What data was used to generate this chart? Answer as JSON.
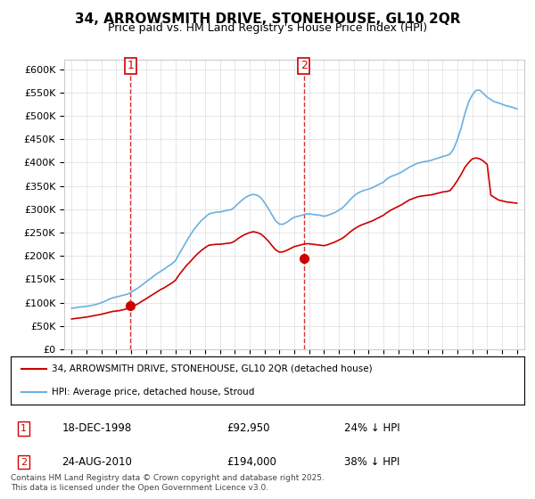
{
  "title": "34, ARROWSMITH DRIVE, STONEHOUSE, GL10 2QR",
  "subtitle": "Price paid vs. HM Land Registry's House Price Index (HPI)",
  "hpi_color": "#6ab0e0",
  "price_color": "#cc0000",
  "background_color": "#ffffff",
  "grid_color": "#dddddd",
  "ylim": [
    0,
    620000
  ],
  "ytick_interval": 50000,
  "legend_house_label": "34, ARROWSMITH DRIVE, STONEHOUSE, GL10 2QR (detached house)",
  "legend_hpi_label": "HPI: Average price, detached house, Stroud",
  "annotation1": {
    "label": "1",
    "date": "18-DEC-1998",
    "price": "£92,950",
    "pct": "24% ↓ HPI"
  },
  "annotation2": {
    "label": "2",
    "date": "24-AUG-2010",
    "price": "£194,000",
    "pct": "38% ↓ HPI"
  },
  "footnote": "Contains HM Land Registry data © Crown copyright and database right 2025.\nThis data is licensed under the Open Government Licence v3.0.",
  "transaction1_year": 1998.96,
  "transaction1_price": 92950,
  "transaction2_year": 2010.64,
  "transaction2_price": 194000,
  "hpi_years": [
    1995,
    1995.25,
    1995.5,
    1995.75,
    1996,
    1996.25,
    1996.5,
    1996.75,
    1997,
    1997.25,
    1997.5,
    1997.75,
    1998,
    1998.25,
    1998.5,
    1998.75,
    1999,
    1999.25,
    1999.5,
    1999.75,
    2000,
    2000.25,
    2000.5,
    2000.75,
    2001,
    2001.25,
    2001.5,
    2001.75,
    2002,
    2002.25,
    2002.5,
    2002.75,
    2003,
    2003.25,
    2003.5,
    2003.75,
    2004,
    2004.25,
    2004.5,
    2004.75,
    2005,
    2005.25,
    2005.5,
    2005.75,
    2006,
    2006.25,
    2006.5,
    2006.75,
    2007,
    2007.25,
    2007.5,
    2007.75,
    2008,
    2008.25,
    2008.5,
    2008.75,
    2009,
    2009.25,
    2009.5,
    2009.75,
    2010,
    2010.25,
    2010.5,
    2010.75,
    2011,
    2011.25,
    2011.5,
    2011.75,
    2012,
    2012.25,
    2012.5,
    2012.75,
    2013,
    2013.25,
    2013.5,
    2013.75,
    2014,
    2014.25,
    2014.5,
    2014.75,
    2015,
    2015.25,
    2015.5,
    2015.75,
    2016,
    2016.25,
    2016.5,
    2016.75,
    2017,
    2017.25,
    2017.5,
    2017.75,
    2018,
    2018.25,
    2018.5,
    2018.75,
    2019,
    2019.25,
    2019.5,
    2019.75,
    2020,
    2020.25,
    2020.5,
    2020.75,
    2021,
    2021.25,
    2021.5,
    2021.75,
    2022,
    2022.25,
    2022.5,
    2022.75,
    2023,
    2023.25,
    2023.5,
    2023.75,
    2024,
    2024.25,
    2024.5,
    2024.75,
    2025
  ],
  "hpi_values": [
    88000,
    89000,
    90500,
    91000,
    92000,
    93500,
    95000,
    97000,
    100000,
    103000,
    107000,
    110000,
    112000,
    114000,
    116000,
    118000,
    122000,
    127000,
    132000,
    138000,
    144000,
    150000,
    156000,
    162000,
    167000,
    172000,
    178000,
    183000,
    190000,
    205000,
    218000,
    232000,
    245000,
    257000,
    267000,
    276000,
    283000,
    290000,
    292000,
    294000,
    294000,
    296000,
    298000,
    299000,
    305000,
    313000,
    320000,
    326000,
    330000,
    332000,
    330000,
    325000,
    314000,
    302000,
    288000,
    275000,
    268000,
    268000,
    272000,
    278000,
    283000,
    285000,
    287000,
    290000,
    290000,
    289000,
    288000,
    287000,
    285000,
    287000,
    290000,
    293000,
    298000,
    303000,
    311000,
    320000,
    328000,
    334000,
    338000,
    341000,
    343000,
    346000,
    350000,
    354000,
    358000,
    365000,
    370000,
    373000,
    376000,
    380000,
    385000,
    390000,
    394000,
    398000,
    400000,
    402000,
    403000,
    405000,
    408000,
    410000,
    413000,
    415000,
    418000,
    430000,
    450000,
    475000,
    505000,
    530000,
    545000,
    555000,
    555000,
    548000,
    540000,
    535000,
    530000,
    528000,
    525000,
    522000,
    520000,
    518000,
    515000
  ],
  "price_years": [
    1995,
    1995.25,
    1995.5,
    1995.75,
    1996,
    1996.25,
    1996.5,
    1996.75,
    1997,
    1997.25,
    1997.5,
    1997.75,
    1998,
    1998.25,
    1998.5,
    1998.75,
    1999,
    1999.25,
    1999.5,
    1999.75,
    2000,
    2000.25,
    2000.5,
    2000.75,
    2001,
    2001.25,
    2001.5,
    2001.75,
    2002,
    2002.25,
    2002.5,
    2002.75,
    2003,
    2003.25,
    2003.5,
    2003.75,
    2004,
    2004.25,
    2004.5,
    2004.75,
    2005,
    2005.25,
    2005.5,
    2005.75,
    2006,
    2006.25,
    2006.5,
    2006.75,
    2007,
    2007.25,
    2007.5,
    2007.75,
    2008,
    2008.25,
    2008.5,
    2008.75,
    2009,
    2009.25,
    2009.5,
    2009.75,
    2010,
    2010.25,
    2010.5,
    2010.75,
    2011,
    2011.25,
    2011.5,
    2011.75,
    2012,
    2012.25,
    2012.5,
    2012.75,
    2013,
    2013.25,
    2013.5,
    2013.75,
    2014,
    2014.25,
    2014.5,
    2014.75,
    2015,
    2015.25,
    2015.5,
    2015.75,
    2016,
    2016.25,
    2016.5,
    2016.75,
    2017,
    2017.25,
    2017.5,
    2017.75,
    2018,
    2018.25,
    2018.5,
    2018.75,
    2019,
    2019.25,
    2019.5,
    2019.75,
    2020,
    2020.25,
    2020.5,
    2020.75,
    2021,
    2021.25,
    2021.5,
    2021.75,
    2022,
    2022.25,
    2022.5,
    2022.75,
    2023,
    2023.25,
    2023.5,
    2023.75,
    2024,
    2024.25,
    2024.5,
    2024.75,
    2025
  ],
  "price_values": [
    65000,
    66000,
    67000,
    68000,
    69000,
    70500,
    72000,
    73500,
    75000,
    77000,
    79000,
    81000,
    82000,
    83000,
    85000,
    87000,
    90000,
    94000,
    98000,
    103000,
    108000,
    113000,
    118000,
    123000,
    128000,
    132000,
    137000,
    142000,
    148000,
    160000,
    170000,
    180000,
    188000,
    197000,
    205000,
    212000,
    218000,
    223000,
    224000,
    225000,
    225000,
    226000,
    227000,
    228000,
    232000,
    238000,
    243000,
    247000,
    250000,
    252000,
    250000,
    247000,
    240000,
    232000,
    222000,
    213000,
    208000,
    209000,
    212000,
    216000,
    220000,
    222000,
    224000,
    226000,
    226000,
    225000,
    224000,
    223000,
    222000,
    224000,
    227000,
    230000,
    234000,
    238000,
    244000,
    251000,
    257000,
    262000,
    266000,
    269000,
    272000,
    275000,
    279000,
    283000,
    287000,
    293000,
    298000,
    302000,
    306000,
    310000,
    315000,
    320000,
    323000,
    326000,
    328000,
    329000,
    330000,
    331000,
    333000,
    335000,
    337000,
    338000,
    340000,
    350000,
    362000,
    375000,
    390000,
    400000,
    408000,
    410000,
    408000,
    403000,
    396000,
    330000,
    325000,
    320000,
    318000,
    316000,
    315000,
    314000,
    313000
  ]
}
